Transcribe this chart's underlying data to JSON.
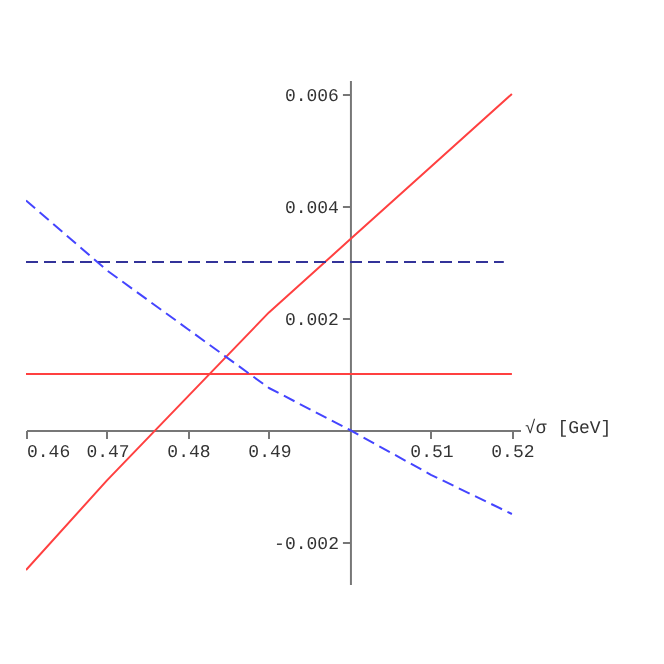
{
  "chart_data": {
    "type": "line",
    "xlabel": "√σ  [GeV]",
    "xlim": [
      0.46,
      0.521
    ],
    "ylim": [
      -0.00275,
      0.00625
    ],
    "xticks": [
      0.46,
      0.47,
      0.48,
      0.49,
      0.51,
      0.52
    ],
    "yticks": [
      -0.002,
      0.002,
      0.004,
      0.006
    ],
    "grid": false,
    "series": [
      {
        "color": "#ff4040",
        "line_style": "solid",
        "x": [
          0.46,
          0.47,
          0.48,
          0.49,
          0.5,
          0.51,
          0.52
        ],
        "values": [
          -0.0025,
          -0.0009,
          0.0006,
          0.0021,
          0.0034,
          0.0047,
          0.006
        ]
      },
      {
        "color": "#ff4040",
        "line_style": "solid",
        "x": [
          0.46,
          0.52
        ],
        "values": [
          0.001,
          0.001
        ]
      },
      {
        "color": "#333399",
        "line_style": "dashed",
        "x": [
          0.46,
          0.519
        ],
        "values": [
          0.003,
          0.003
        ]
      },
      {
        "color": "#4444ff",
        "line_style": "dashed",
        "x": [
          0.46,
          0.47,
          0.48,
          0.49,
          0.5,
          0.51,
          0.52
        ],
        "values": [
          0.0041,
          0.00285,
          0.0018,
          0.00075,
          0,
          -0.0008,
          -0.0015
        ]
      }
    ]
  }
}
